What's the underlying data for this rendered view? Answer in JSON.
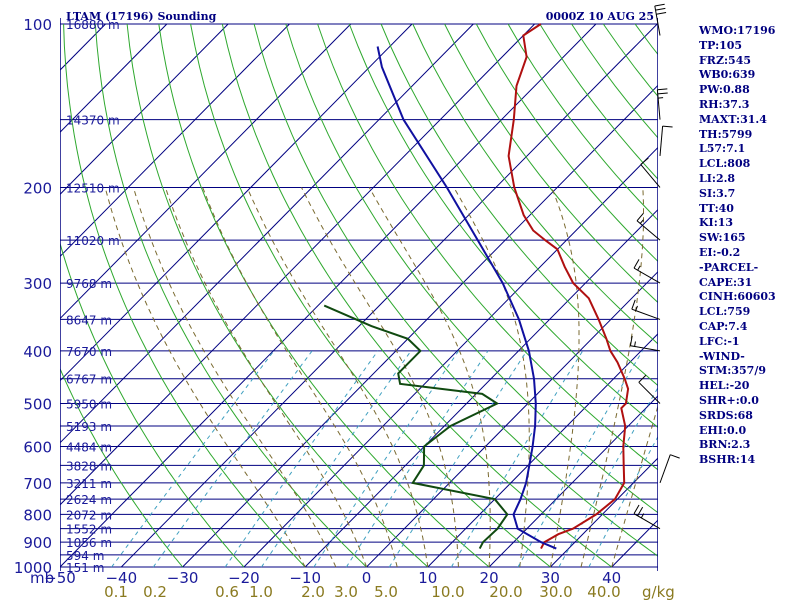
{
  "chart_data": {
    "type": "line",
    "title": "LTAM (17196) Sounding",
    "datetime": "0000Z 10 AUG 25",
    "xunit_label": "mb",
    "mixing_unit": "g/kg",
    "pressure_ticks": [
      {
        "p": 100,
        "label": "100"
      },
      {
        "p": 200,
        "label": "200"
      },
      {
        "p": 300,
        "label": "300"
      },
      {
        "p": 400,
        "label": "400"
      },
      {
        "p": 500,
        "label": "500"
      },
      {
        "p": 600,
        "label": "600"
      },
      {
        "p": 700,
        "label": "700"
      },
      {
        "p": 800,
        "label": "800"
      },
      {
        "p": 900,
        "label": "900"
      },
      {
        "p": 1000,
        "label": "1000"
      }
    ],
    "height_labels": [
      {
        "p": 100,
        "label": "16880 m"
      },
      {
        "p": 150,
        "label": "14370 m"
      },
      {
        "p": 200,
        "label": "12510 m"
      },
      {
        "p": 250,
        "label": "11020 m"
      },
      {
        "p": 300,
        "label": "9768 m"
      },
      {
        "p": 350,
        "label": "8647 m"
      },
      {
        "p": 400,
        "label": "7670 m"
      },
      {
        "p": 450,
        "label": "6767 m"
      },
      {
        "p": 500,
        "label": "5950 m"
      },
      {
        "p": 550,
        "label": "5193 m"
      },
      {
        "p": 600,
        "label": "4484 m"
      },
      {
        "p": 650,
        "label": "3828 m"
      },
      {
        "p": 700,
        "label": "3211 m"
      },
      {
        "p": 750,
        "label": "2624 m"
      },
      {
        "p": 800,
        "label": "2072 m"
      },
      {
        "p": 850,
        "label": "1552 m"
      },
      {
        "p": 900,
        "label": "1056 m"
      },
      {
        "p": 950,
        "label": "594 m"
      },
      {
        "p": 1000,
        "label": "151 m"
      }
    ],
    "temperature_ticks": [
      {
        "t": -50,
        "label": "−50"
      },
      {
        "t": -40,
        "label": "−40"
      },
      {
        "t": -30,
        "label": "−30"
      },
      {
        "t": -20,
        "label": "−20"
      },
      {
        "t": -10,
        "label": "−10"
      },
      {
        "t": 0,
        "label": "0"
      },
      {
        "t": 10,
        "label": "10"
      },
      {
        "t": 20,
        "label": "20"
      },
      {
        "t": 30,
        "label": "30"
      },
      {
        "t": 40,
        "label": "40"
      }
    ],
    "mixing_ticks": [
      "0.1",
      "0.2",
      "0.6",
      "1.0",
      "2.0",
      "3.0",
      "5.0",
      "10.0",
      "20.0",
      "30.0",
      "40.0"
    ],
    "series": [
      {
        "key": "temperature",
        "color": "#b01010",
        "points": [
          [
            925,
            25.5
          ],
          [
            900,
            25
          ],
          [
            870,
            26
          ],
          [
            850,
            27.5
          ],
          [
            800,
            29
          ],
          [
            750,
            29.6
          ],
          [
            700,
            28.5
          ],
          [
            650,
            25.6
          ],
          [
            600,
            22.5
          ],
          [
            550,
            19.5
          ],
          [
            510,
            16
          ],
          [
            500,
            16
          ],
          [
            470,
            14
          ],
          [
            450,
            11.8
          ],
          [
            420,
            8
          ],
          [
            400,
            5
          ],
          [
            380,
            2.4
          ],
          [
            350,
            -2
          ],
          [
            320,
            -7
          ],
          [
            300,
            -12
          ],
          [
            280,
            -16
          ],
          [
            260,
            -20
          ],
          [
            250,
            -23.5
          ],
          [
            240,
            -27
          ],
          [
            225,
            -31
          ],
          [
            200,
            -37
          ],
          [
            175,
            -43
          ],
          [
            150,
            -48
          ],
          [
            130,
            -53
          ],
          [
            115,
            -56
          ],
          [
            105,
            -60
          ],
          [
            100,
            -59
          ]
        ]
      },
      {
        "key": "dewpoint",
        "color": "#104a10",
        "points": [
          [
            925,
            15.5
          ],
          [
            900,
            15
          ],
          [
            850,
            15.2
          ],
          [
            800,
            14.5
          ],
          [
            750,
            10
          ],
          [
            700,
            -6
          ],
          [
            650,
            -7
          ],
          [
            600,
            -10
          ],
          [
            550,
            -9
          ],
          [
            500,
            -5
          ],
          [
            480,
            -9
          ],
          [
            460,
            -24
          ],
          [
            440,
            -26
          ],
          [
            400,
            -26
          ],
          [
            380,
            -30
          ],
          [
            360,
            -38
          ],
          [
            330,
            -49
          ]
        ]
      },
      {
        "key": "parcel",
        "color": "#1010a0",
        "points": [
          [
            925,
            28
          ],
          [
            900,
            24.5
          ],
          [
            850,
            18.5
          ],
          [
            800,
            15.5
          ],
          [
            750,
            14.2
          ],
          [
            700,
            12.5
          ],
          [
            650,
            10.2
          ],
          [
            600,
            7.7
          ],
          [
            550,
            4.8
          ],
          [
            500,
            1.3
          ],
          [
            450,
            -3
          ],
          [
            400,
            -8.3
          ],
          [
            350,
            -15
          ],
          [
            300,
            -23.5
          ],
          [
            250,
            -34.5
          ],
          [
            200,
            -48
          ],
          [
            150,
            -66
          ],
          [
            120,
            -78
          ],
          [
            110,
            -82
          ]
        ]
      }
    ],
    "wind_barbs": [
      {
        "p": 105,
        "dir": 350,
        "spd": 30
      },
      {
        "p": 150,
        "dir": 355,
        "spd": 25
      },
      {
        "p": 175,
        "dir": 5,
        "spd": 10
      },
      {
        "p": 200,
        "dir": 320,
        "spd": 10
      },
      {
        "p": 250,
        "dir": 310,
        "spd": 15
      },
      {
        "p": 300,
        "dir": 300,
        "spd": 15
      },
      {
        "p": 350,
        "dir": 290,
        "spd": 15
      },
      {
        "p": 400,
        "dir": 280,
        "spd": 15
      },
      {
        "p": 500,
        "dir": 315,
        "spd": 10
      },
      {
        "p": 700,
        "dir": 20,
        "spd": 10
      },
      {
        "p": 850,
        "dir": 300,
        "spd": 25
      }
    ]
  },
  "indices": [
    "WMO:17196",
    "TP:105",
    "FRZ:545",
    "WB0:639",
    "PW:0.88",
    "RH:37.3",
    "MAXT:31.4",
    "TH:5799",
    "L57:7.1",
    "LCL:808",
    "LI:2.8",
    "SI:3.7",
    "TT:40",
    "KI:13",
    "SW:165",
    "EI:-0.2",
    "-PARCEL-",
    "CAPE:31",
    "CINH:60603",
    "LCL:759",
    "CAP:7.4",
    "LFC:-1",
    "-WIND-",
    "STM:357/9",
    "HEL:-20",
    "SHR+:0.0",
    "SRDS:68",
    "EHI:0.0",
    "BRN:2.3",
    "BSHR:14"
  ],
  "colors": {
    "frame": "#000080",
    "dry_adiabat": "#2ea82e",
    "moist_adiabat": "#7a6a30",
    "mixing": "#40a0c0"
  }
}
